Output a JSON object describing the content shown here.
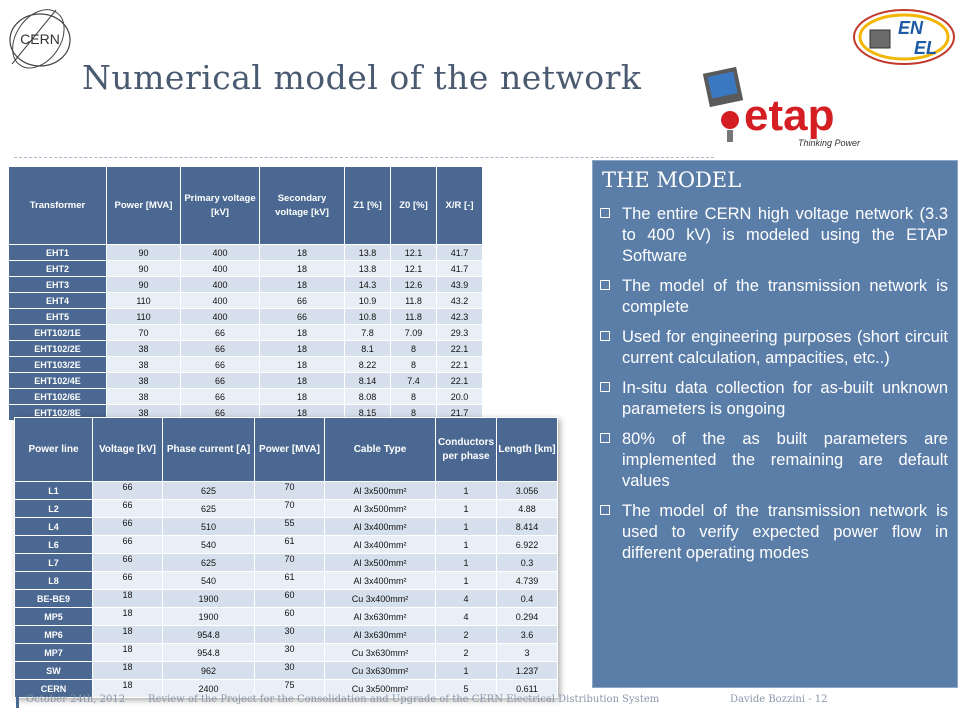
{
  "title": "Numerical model of the network",
  "logos": {
    "cern_text": "CERN",
    "etap_text": "etap",
    "etap_tagline": "Thinking Power",
    "en_text": "EN",
    "el_text": "EL"
  },
  "transformer_table": {
    "headers": [
      "Transformer",
      "Power [MVA]",
      "Primary voltage [kV]",
      "Secondary voltage [kV]",
      "Z1 [%]",
      "Z0 [%]",
      "X/R [-]"
    ],
    "rows": [
      [
        "EHT1",
        "90",
        "400",
        "18",
        "13.8",
        "12.1",
        "41.7"
      ],
      [
        "EHT2",
        "90",
        "400",
        "18",
        "13.8",
        "12.1",
        "41.7"
      ],
      [
        "EHT3",
        "90",
        "400",
        "18",
        "14.3",
        "12.6",
        "43.9"
      ],
      [
        "EHT4",
        "110",
        "400",
        "66",
        "10.9",
        "11.8",
        "43.2"
      ],
      [
        "EHT5",
        "110",
        "400",
        "66",
        "10.8",
        "11.8",
        "42.3"
      ],
      [
        "EHT102/1E",
        "70",
        "66",
        "18",
        "7.8",
        "7.09",
        "29.3"
      ],
      [
        "EHT102/2E",
        "38",
        "66",
        "18",
        "8.1",
        "8",
        "22.1"
      ],
      [
        "EHT103/2E",
        "38",
        "66",
        "18",
        "8.22",
        "8",
        "22.1"
      ],
      [
        "EHT102/4E",
        "38",
        "66",
        "18",
        "8.14",
        "7.4",
        "22.1"
      ],
      [
        "EHT102/6E",
        "38",
        "66",
        "18",
        "8.08",
        "8",
        "20.0"
      ],
      [
        "EHT102/8E",
        "38",
        "66",
        "18",
        "8.15",
        "8",
        "21.7"
      ]
    ]
  },
  "power_line_table": {
    "headers": [
      "Power line",
      "Voltage [kV]",
      "Phase current [A]",
      "Power [MVA]",
      "Cable Type",
      "Conductors per phase",
      "Length [km]"
    ],
    "rows": [
      [
        "L1",
        "66",
        "625",
        "70",
        "Al 3x500mm²",
        "1",
        "3.056"
      ],
      [
        "L2",
        "66",
        "625",
        "70",
        "Al 3x500mm²",
        "1",
        "4.88"
      ],
      [
        "L4",
        "66",
        "510",
        "55",
        "Al 3x400mm²",
        "1",
        "8.414"
      ],
      [
        "L6",
        "66",
        "540",
        "61",
        "Al 3x400mm²",
        "1",
        "6.922"
      ],
      [
        "L7",
        "66",
        "625",
        "70",
        "Al 3x500mm²",
        "1",
        "0.3"
      ],
      [
        "L8",
        "66",
        "540",
        "61",
        "Al 3x400mm²",
        "1",
        "4.739"
      ],
      [
        "BE-BE9",
        "18",
        "1900",
        "60",
        "Cu 3x400mm²",
        "4",
        "0.4"
      ],
      [
        "MP5",
        "18",
        "1900",
        "60",
        "Al 3x630mm²",
        "4",
        "0.294"
      ],
      [
        "MP6",
        "18",
        "954.8",
        "30",
        "Al 3x630mm²",
        "2",
        "3.6"
      ],
      [
        "MP7",
        "18",
        "954.8",
        "30",
        "Cu 3x630mm²",
        "2",
        "3"
      ],
      [
        "SW",
        "18",
        "962",
        "30",
        "Cu 3x630mm²",
        "1",
        "1.237"
      ],
      [
        "CERN",
        "18",
        "2400",
        "75",
        "Cu 3x500mm²",
        "5",
        "0.611"
      ]
    ]
  },
  "model_box": {
    "heading": "THE MODEL",
    "items": [
      "The entire CERN high voltage network (3.3 to 400 kV) is modeled using the ETAP Software",
      "The model of the transmission network is complete",
      "Used for engineering purposes (short circuit current calculation, ampacities, etc..)",
      "In-situ data collection for as-built unknown parameters is ongoing",
      "80% of the as built parameters are implemented the remaining are default values",
      "The model of the transmission network is used to verify expected power flow in different operating modes"
    ]
  },
  "footer": {
    "date": "October 24th, 2012",
    "title": "Review of the Project for the Consolidation and Upgrade of the  CERN Electrical Distribution System",
    "author": "Davide Bozzini - 12"
  },
  "colors": {
    "table_header": "#4a6891",
    "table_row": "#d6e0ec",
    "model_box": "#5b7ea8",
    "title": "#4a5a70",
    "etap_red": "#d41e23"
  }
}
